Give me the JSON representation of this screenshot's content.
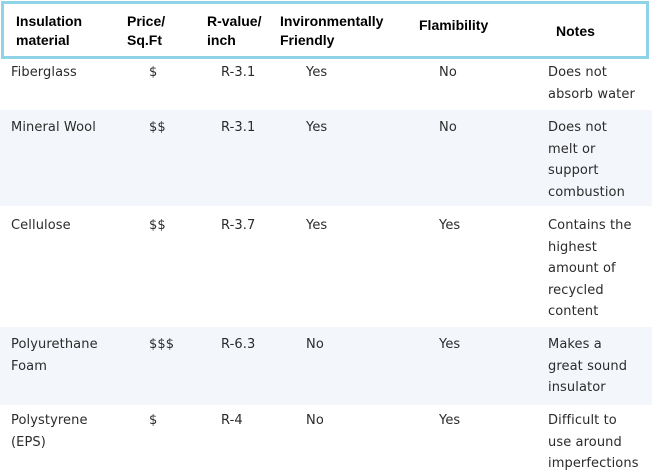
{
  "table": {
    "headers": {
      "material": "Insulation\nmaterial",
      "price": "Price/\nSq.Ft",
      "rvalue": "R-value/\ninch",
      "env": "Invironmentally\nFriendly",
      "flam": "Flamibility",
      "notes": "Notes"
    },
    "rows": [
      {
        "material": "Fiberglass",
        "price": "$",
        "rvalue": "R-3.1",
        "env": "Yes",
        "flam": "No",
        "notes": [
          "Does not",
          "absorb water"
        ]
      },
      {
        "material": "Mineral Wool",
        "price": "$$",
        "rvalue": "R-3.1",
        "env": "Yes",
        "flam": "No",
        "notes": [
          "Does not",
          "melt or",
          "support",
          "combustion"
        ]
      },
      {
        "material": "Cellulose",
        "price": "$$",
        "rvalue": "R-3.7",
        "env": "Yes",
        "flam": "Yes",
        "notes": [
          "Contains the",
          "highest",
          "amount of",
          "recycled",
          "content"
        ]
      },
      {
        "material": [
          "Polyurethane",
          "Foam"
        ],
        "price": "$$$",
        "rvalue": "R-6.3",
        "env": "No",
        "flam": "Yes",
        "notes": [
          "Makes a",
          "great sound",
          "insulator"
        ]
      },
      {
        "material": [
          "Polystyrene",
          "(EPS)"
        ],
        "price": "$",
        "rvalue": "R-4",
        "env": "No",
        "flam": "Yes",
        "notes": [
          "Difficult to",
          "use around",
          "imperfections"
        ]
      }
    ]
  },
  "colors": {
    "header_border": "#8fd3e8",
    "alt_row": "#f3f7fb",
    "text": "#2b2b2b"
  }
}
